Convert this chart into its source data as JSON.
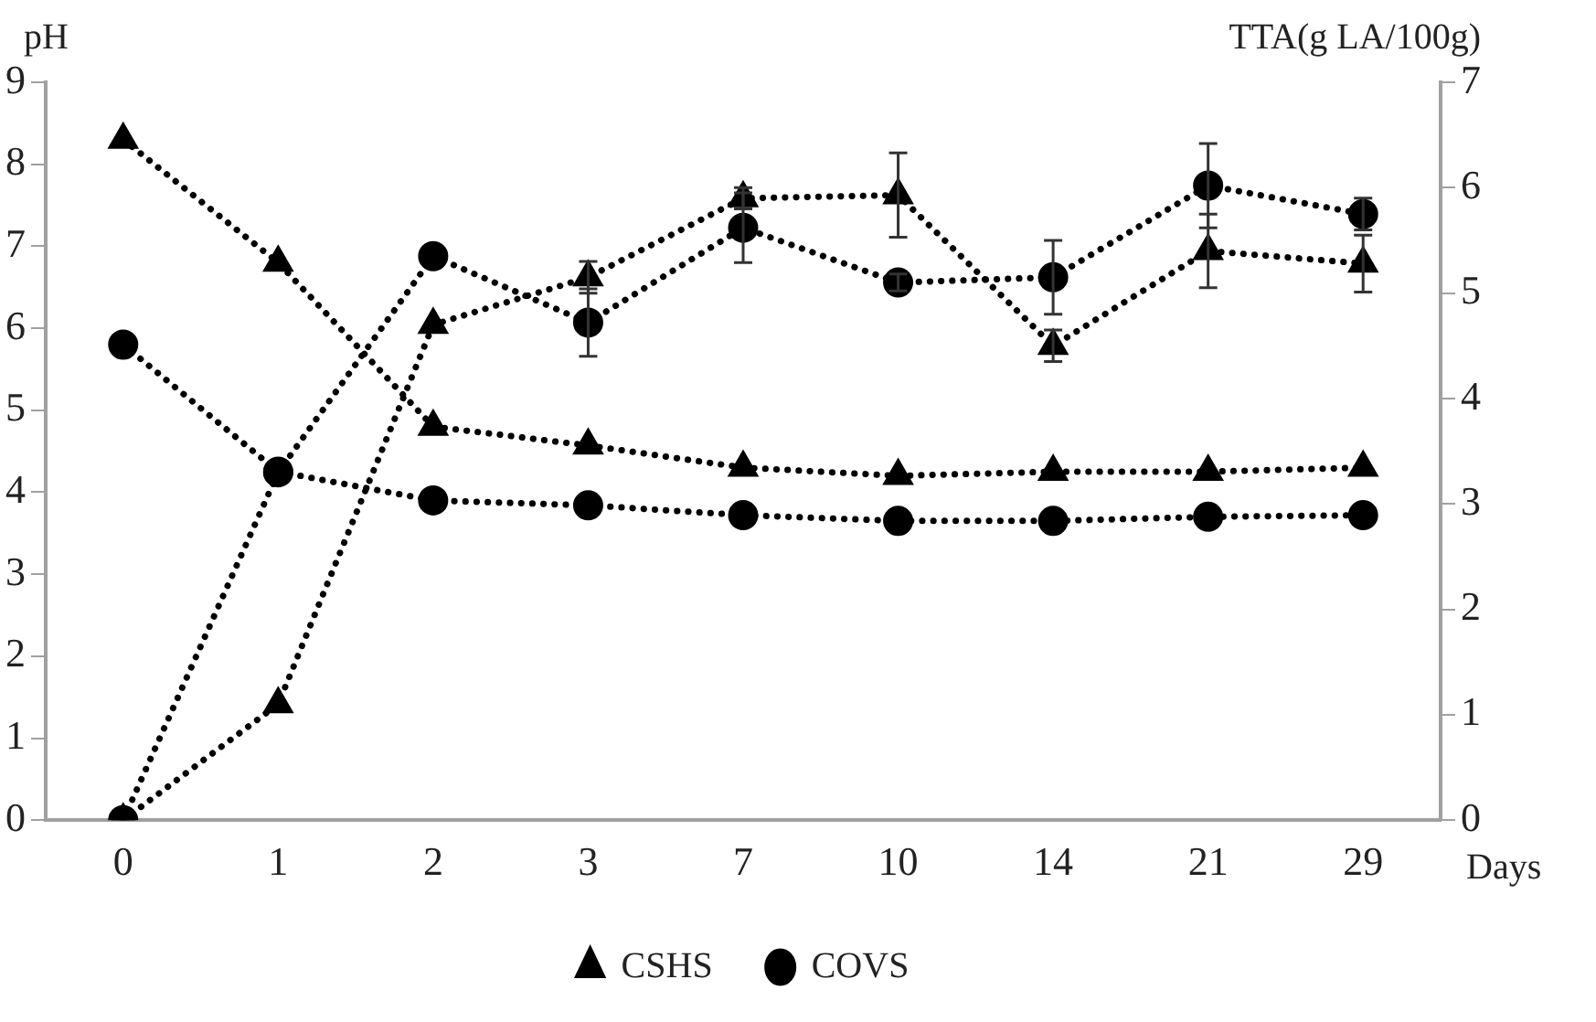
{
  "chart_data": {
    "type": "line",
    "xlabel": "Days",
    "ylabel": "pH",
    "y2label": "TTA(g LA/100g)",
    "categories": [
      "0",
      "1",
      "2",
      "3",
      "7",
      "10",
      "14",
      "21",
      "29"
    ],
    "ylim": [
      0,
      9
    ],
    "yticks": [
      0,
      1,
      2,
      3,
      4,
      5,
      6,
      7,
      8,
      9
    ],
    "y2lim": [
      0,
      7
    ],
    "y2ticks": [
      0,
      1,
      2,
      3,
      4,
      5,
      6,
      7
    ],
    "grid": false,
    "legend": "bottom",
    "line_style": "dotted",
    "series": [
      {
        "name": "CSHS",
        "color": "#000000",
        "marker": "triangle",
        "values": [
          8.3,
          6.8,
          4.8,
          4.57,
          4.3,
          4.2,
          4.25,
          4.25,
          4.3
        ]
      },
      {
        "name": "COVS",
        "color": "#000000",
        "marker": "circle",
        "values": [
          5.8,
          4.25,
          3.9,
          3.84,
          3.72,
          3.65,
          3.65,
          3.7,
          3.72
        ]
      },
      {
        "color": "#000000",
        "marker": "circle",
        "axis": "y2",
        "values": [
          0,
          3.3,
          5.35,
          4.72,
          5.62,
          5.1,
          5.15,
          6.02,
          5.75
        ],
        "errors": [
          null,
          null,
          null,
          0.32,
          0.33,
          0.08,
          0.35,
          0.4,
          0.15
        ]
      },
      {
        "color": "#000000",
        "marker": "triangle",
        "axis": "y2",
        "values": [
          0,
          1.1,
          4.7,
          5.15,
          5.9,
          5.93,
          4.5,
          5.4,
          5.28
        ],
        "errors": [
          null,
          null,
          null,
          0.15,
          0.1,
          0.4,
          0.15,
          0.35,
          0.27
        ]
      }
    ]
  }
}
